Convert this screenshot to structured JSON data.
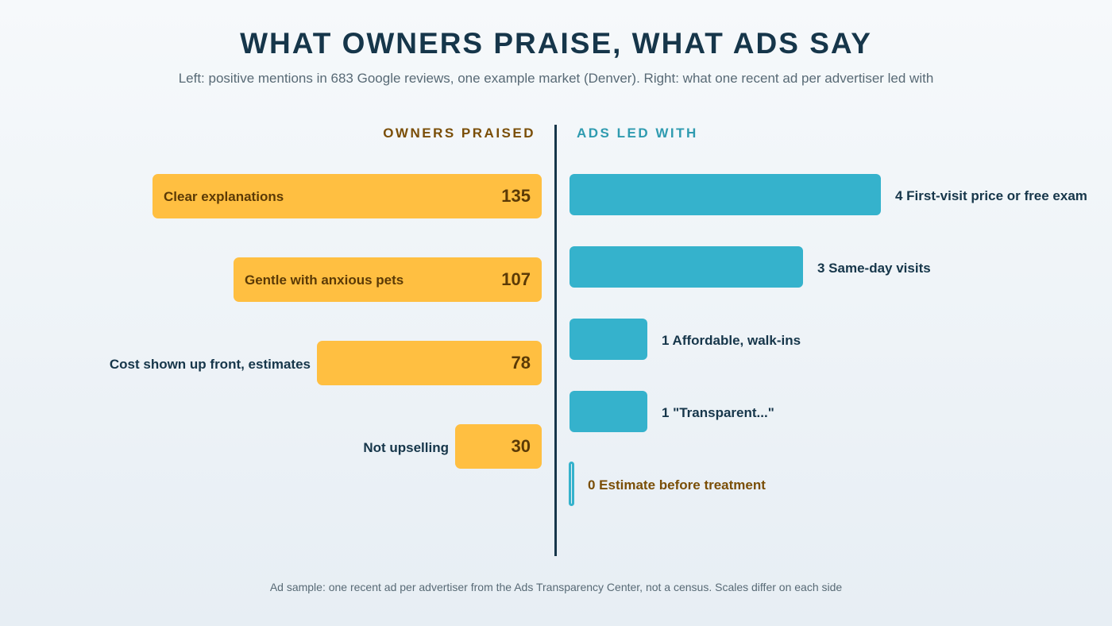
{
  "title": "WHAT OWNERS PRAISE, WHAT ADS SAY",
  "subtitle": "Left: positive mentions in 683 Google reviews, one example market (Denver). Right: what one recent ad per advertiser led with",
  "footnote": "Ad sample: one recent ad per advertiser from the Ads Transparency Center, not a census. Scales differ on each side",
  "colors": {
    "owners_bar": "#ffbf41",
    "owners_text": "#5b3a06",
    "ads_bar": "#35b2cc",
    "ink": "#16364a"
  },
  "chart_data": [
    {
      "type": "bar",
      "orientation": "horizontal",
      "title": "OWNERS PRAISED",
      "categories": [
        "Clear explanations",
        "Gentle with anxious pets",
        "Cost shown up front, estimates",
        "Not upselling"
      ],
      "values": [
        135,
        107,
        78,
        30
      ],
      "value_labels": [
        "135",
        "107",
        "78",
        "30"
      ]
    },
    {
      "type": "bar",
      "orientation": "horizontal",
      "title": "ADS LED WITH",
      "categories": [
        "First-visit price or free exam",
        "Same-day visits",
        "Affordable, walk-ins",
        "\"Transparent...\"",
        "Estimate before treatment"
      ],
      "values": [
        4,
        3,
        1,
        1,
        0
      ],
      "labels": [
        "4 First-visit price or free exam",
        "3 Same-day visits",
        "1 Affordable, walk-ins",
        "1 \"Transparent...\"",
        "0 Estimate before treatment"
      ]
    }
  ]
}
